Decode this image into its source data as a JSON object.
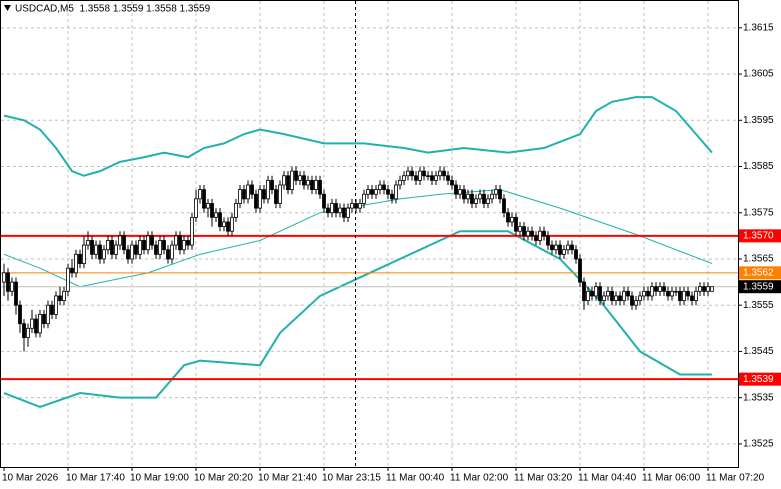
{
  "chart_data": {
    "type": "candlestick",
    "title": "USDCAD,M5  1.3558 1.3559 1.3558 1.3559",
    "open": [
      1.356,
      1.3562,
      1.3558,
      1.356,
      1.3555,
      1.3551,
      1.3548,
      1.355,
      1.3552,
      1.3549,
      1.3553,
      1.3551,
      1.3555,
      1.3553,
      1.3557,
      1.3556,
      1.3558,
      1.3563,
      1.3562,
      1.3566,
      1.3564,
      1.3568,
      1.3569,
      1.3566,
      1.3568,
      1.3565,
      1.3567,
      1.3569,
      1.3566,
      1.3568,
      1.357,
      1.3567,
      1.3565,
      1.3568,
      1.3566,
      1.3569,
      1.3567,
      1.357,
      1.3568,
      1.3566,
      1.3569,
      1.3567,
      1.3565,
      1.3568,
      1.357,
      1.3567,
      1.3569,
      1.3568,
      1.3574,
      1.3578,
      1.358,
      1.3576,
      1.3577,
      1.3574,
      1.3575,
      1.3572,
      1.3573,
      1.3571,
      1.3574,
      1.3577,
      1.358,
      1.3578,
      1.3581,
      1.3579,
      1.3576,
      1.358,
      1.3578,
      1.3582,
      1.358,
      1.3577,
      1.3581,
      1.3583,
      1.358,
      1.3584,
      1.3582,
      1.3583,
      1.3581,
      1.3582,
      1.358,
      1.3582,
      1.3579,
      1.3576,
      1.3575,
      1.3577,
      1.3575,
      1.3576,
      1.3574,
      1.3576,
      1.3577,
      1.3576,
      1.3577,
      1.3579,
      1.358,
      1.3579,
      1.358,
      1.3581,
      1.358,
      1.3579,
      1.3578,
      1.3581,
      1.3582,
      1.3583,
      1.3584,
      1.3583,
      1.3582,
      1.3584,
      1.3583,
      1.3583,
      1.3582,
      1.3583,
      1.3584,
      1.3583,
      1.3582,
      1.3581,
      1.3579,
      1.358,
      1.3578,
      1.3579,
      1.3577,
      1.3578,
      1.3579,
      1.3577,
      1.3578,
      1.3579,
      1.358,
      1.3578,
      1.3575,
      1.3573,
      1.3574,
      1.3571,
      1.3572,
      1.357,
      1.3571,
      1.357,
      1.3569,
      1.3571,
      1.357,
      1.3568,
      1.3567,
      1.3568,
      1.3566,
      1.3567,
      1.3568,
      1.3567,
      1.3565,
      1.356,
      1.3556,
      1.3558,
      1.3557,
      1.3559,
      1.3556,
      1.3557,
      1.3558,
      1.3556,
      1.3557,
      1.3556,
      1.3558,
      1.3557,
      1.3555,
      1.3556,
      1.3557,
      1.3558,
      1.3557,
      1.3559,
      1.3558,
      1.3559,
      1.3558,
      1.3557,
      1.3558,
      1.3558,
      1.3556,
      1.3558,
      1.3557,
      1.3556,
      1.3558,
      1.3559,
      1.3558,
      1.3558
    ],
    "high": [
      1.3564,
      1.3563,
      1.3561,
      1.3561,
      1.3556,
      1.3552,
      1.3551,
      1.3554,
      1.3553,
      1.3554,
      1.3554,
      1.3556,
      1.3556,
      1.3558,
      1.3559,
      1.3559,
      1.3564,
      1.3565,
      1.3567,
      1.3567,
      1.357,
      1.3571,
      1.357,
      1.3569,
      1.3569,
      1.3568,
      1.357,
      1.357,
      1.3569,
      1.3571,
      1.3571,
      1.3568,
      1.3569,
      1.3569,
      1.357,
      1.357,
      1.3571,
      1.3571,
      1.3569,
      1.357,
      1.357,
      1.3568,
      1.3569,
      1.3571,
      1.3571,
      1.357,
      1.357,
      1.3575,
      1.358,
      1.3581,
      1.3581,
      1.3578,
      1.3578,
      1.3576,
      1.3576,
      1.3574,
      1.3574,
      1.3575,
      1.3578,
      1.3581,
      1.3581,
      1.3582,
      1.3582,
      1.358,
      1.3581,
      1.3581,
      1.3583,
      1.3583,
      1.3581,
      1.3582,
      1.3584,
      1.3584,
      1.3585,
      1.3585,
      1.3584,
      1.3584,
      1.3583,
      1.3583,
      1.3583,
      1.3583,
      1.358,
      1.3577,
      1.3578,
      1.3578,
      1.3577,
      1.3577,
      1.3577,
      1.3578,
      1.3578,
      1.3578,
      1.358,
      1.3581,
      1.3581,
      1.3581,
      1.3582,
      1.3582,
      1.3581,
      1.358,
      1.3582,
      1.3583,
      1.3584,
      1.3585,
      1.3585,
      1.3584,
      1.3585,
      1.3585,
      1.3584,
      1.3584,
      1.3584,
      1.3585,
      1.3585,
      1.3584,
      1.3583,
      1.3582,
      1.3581,
      1.3581,
      1.358,
      1.358,
      1.3579,
      1.358,
      1.358,
      1.3579,
      1.358,
      1.3581,
      1.3581,
      1.3579,
      1.3576,
      1.3575,
      1.3575,
      1.3573,
      1.3573,
      1.3572,
      1.3572,
      1.3571,
      1.3572,
      1.3572,
      1.3571,
      1.3569,
      1.3569,
      1.3569,
      1.3568,
      1.3569,
      1.3569,
      1.3568,
      1.3566,
      1.3561,
      1.3559,
      1.3559,
      1.356,
      1.356,
      1.3558,
      1.3559,
      1.3559,
      1.3558,
      1.3558,
      1.3559,
      1.3559,
      1.3558,
      1.3557,
      1.3558,
      1.3559,
      1.3559,
      1.356,
      1.356,
      1.356,
      1.356,
      1.3559,
      1.3559,
      1.3559,
      1.3559,
      1.3559,
      1.3559,
      1.3558,
      1.3559,
      1.356,
      1.356,
      1.356,
      1.3559
    ],
    "low": [
      1.3557,
      1.3556,
      1.3557,
      1.3553,
      1.3549,
      1.3545,
      1.3546,
      1.3549,
      1.3548,
      1.3548,
      1.355,
      1.355,
      1.3552,
      1.3552,
      1.3555,
      1.3555,
      1.3557,
      1.3561,
      1.3561,
      1.3563,
      1.3563,
      1.3567,
      1.3565,
      1.3565,
      1.3564,
      1.3564,
      1.3566,
      1.3565,
      1.3565,
      1.3567,
      1.3566,
      1.3564,
      1.3564,
      1.3565,
      1.3565,
      1.3566,
      1.3566,
      1.3567,
      1.3565,
      1.3565,
      1.3566,
      1.3564,
      1.3564,
      1.3567,
      1.3566,
      1.3566,
      1.3567,
      1.3567,
      1.3573,
      1.3577,
      1.3575,
      1.3574,
      1.3572,
      1.3573,
      1.3571,
      1.3571,
      1.357,
      1.357,
      1.3573,
      1.3576,
      1.3577,
      1.3577,
      1.3578,
      1.3575,
      1.3575,
      1.3577,
      1.3577,
      1.3579,
      1.3576,
      1.3576,
      1.358,
      1.3579,
      1.3579,
      1.3581,
      1.3581,
      1.358,
      1.358,
      1.3579,
      1.3579,
      1.3578,
      1.3575,
      1.3574,
      1.3574,
      1.3574,
      1.3574,
      1.3573,
      1.3573,
      1.3575,
      1.3575,
      1.3575,
      1.3576,
      1.3578,
      1.3578,
      1.3578,
      1.3579,
      1.3579,
      1.3578,
      1.3577,
      1.3577,
      1.358,
      1.3581,
      1.3582,
      1.3582,
      1.3581,
      1.3581,
      1.3582,
      1.3582,
      1.3581,
      1.3581,
      1.3582,
      1.3582,
      1.3581,
      1.358,
      1.3578,
      1.3578,
      1.3577,
      1.3577,
      1.3576,
      1.3576,
      1.3577,
      1.3576,
      1.3576,
      1.3577,
      1.3578,
      1.3577,
      1.3574,
      1.3572,
      1.3572,
      1.357,
      1.357,
      1.3569,
      1.3569,
      1.3569,
      1.3568,
      1.3568,
      1.3569,
      1.3567,
      1.3566,
      1.3566,
      1.3565,
      1.3565,
      1.3566,
      1.3566,
      1.3564,
      1.3559,
      1.3554,
      1.3555,
      1.3556,
      1.3556,
      1.3555,
      1.3555,
      1.3556,
      1.3555,
      1.3555,
      1.3555,
      1.3555,
      1.3556,
      1.3554,
      1.3554,
      1.3555,
      1.3556,
      1.3556,
      1.3556,
      1.3557,
      1.3557,
      1.3557,
      1.3556,
      1.3556,
      1.3557,
      1.3555,
      1.3555,
      1.3556,
      1.3555,
      1.3555,
      1.3557,
      1.3557,
      1.3557,
      1.3558
    ],
    "close": [
      1.3562,
      1.3558,
      1.356,
      1.3555,
      1.3551,
      1.3548,
      1.355,
      1.3552,
      1.3549,
      1.3553,
      1.3551,
      1.3555,
      1.3553,
      1.3557,
      1.3556,
      1.3558,
      1.3563,
      1.3562,
      1.3566,
      1.3564,
      1.3568,
      1.3569,
      1.3566,
      1.3568,
      1.3565,
      1.3567,
      1.3569,
      1.3566,
      1.3568,
      1.357,
      1.3567,
      1.3565,
      1.3568,
      1.3566,
      1.3569,
      1.3567,
      1.357,
      1.3568,
      1.3566,
      1.3569,
      1.3567,
      1.3565,
      1.3568,
      1.357,
      1.3567,
      1.3569,
      1.3568,
      1.3574,
      1.3578,
      1.358,
      1.3576,
      1.3577,
      1.3574,
      1.3575,
      1.3572,
      1.3573,
      1.3571,
      1.3574,
      1.3577,
      1.358,
      1.3578,
      1.3581,
      1.3579,
      1.3576,
      1.358,
      1.3578,
      1.3582,
      1.358,
      1.3577,
      1.3581,
      1.3583,
      1.358,
      1.3584,
      1.3582,
      1.3583,
      1.3581,
      1.3582,
      1.358,
      1.3582,
      1.3579,
      1.3576,
      1.3575,
      1.3577,
      1.3575,
      1.3576,
      1.3574,
      1.3576,
      1.3577,
      1.3576,
      1.3577,
      1.3579,
      1.358,
      1.3579,
      1.358,
      1.3581,
      1.358,
      1.3579,
      1.3578,
      1.3581,
      1.3582,
      1.3583,
      1.3584,
      1.3583,
      1.3582,
      1.3584,
      1.3583,
      1.3583,
      1.3582,
      1.3583,
      1.3584,
      1.3583,
      1.3582,
      1.3581,
      1.3579,
      1.358,
      1.3578,
      1.3579,
      1.3577,
      1.3578,
      1.3579,
      1.3577,
      1.3578,
      1.3579,
      1.358,
      1.3578,
      1.3575,
      1.3573,
      1.3574,
      1.3571,
      1.3572,
      1.357,
      1.3571,
      1.357,
      1.3569,
      1.3571,
      1.357,
      1.3568,
      1.3567,
      1.3568,
      1.3566,
      1.3567,
      1.3568,
      1.3567,
      1.3565,
      1.356,
      1.3556,
      1.3558,
      1.3557,
      1.3559,
      1.3556,
      1.3557,
      1.3558,
      1.3556,
      1.3557,
      1.3556,
      1.3558,
      1.3557,
      1.3555,
      1.3556,
      1.3557,
      1.3558,
      1.3557,
      1.3559,
      1.3558,
      1.3559,
      1.3558,
      1.3557,
      1.3558,
      1.3558,
      1.3556,
      1.3558,
      1.3557,
      1.3556,
      1.3558,
      1.3559,
      1.3558,
      1.3559,
      1.3559
    ],
    "candle_color": "#000000",
    "xlim": [
      -1,
      183.5
    ],
    "xticks": [
      {
        "value": 0,
        "label": "10 Mar 2026"
      },
      {
        "value": 16,
        "label": "10 Mar 17:40"
      },
      {
        "value": 32,
        "label": "10 Mar 19:00"
      },
      {
        "value": 48,
        "label": "10 Mar 20:20"
      },
      {
        "value": 64,
        "label": "10 Mar 21:40"
      },
      {
        "value": 80,
        "label": "10 Mar 23:15"
      },
      {
        "value": 96,
        "label": "11 Mar 00:40"
      },
      {
        "value": 112,
        "label": "11 Mar 02:00"
      },
      {
        "value": 128,
        "label": "11 Mar 03:20"
      },
      {
        "value": 144,
        "label": "11 Mar 04:40"
      },
      {
        "value": 160,
        "label": "11 Mar 06:00"
      },
      {
        "value": 176,
        "label": "11 Mar 07:20"
      }
    ],
    "ylim": [
      1.352,
      1.36208
    ],
    "yticks": [
      1.3525,
      1.3535,
      1.3545,
      1.3555,
      1.3565,
      1.3575,
      1.3585,
      1.3595,
      1.3605,
      1.3615
    ],
    "grid": true,
    "lines": [
      {
        "color": "#20b2aa",
        "width": 2,
        "x": [
          0,
          5,
          9,
          13,
          17,
          20,
          24,
          29,
          35,
          40,
          46,
          50,
          55,
          60,
          64,
          70,
          80,
          90,
          100,
          106,
          115,
          126,
          135,
          144,
          148,
          152,
          158,
          162,
          168,
          172,
          177
        ],
        "values": [
          1.3596,
          1.3595,
          1.3593,
          1.3589,
          1.3584,
          1.3583,
          1.3584,
          1.3586,
          1.3587,
          1.3588,
          1.3587,
          1.3589,
          1.359,
          1.3592,
          1.3593,
          1.3592,
          1.359,
          1.359,
          1.3589,
          1.3588,
          1.3589,
          1.3588,
          1.3589,
          1.3592,
          1.3597,
          1.3599,
          1.36,
          1.36,
          1.3597,
          1.3593,
          1.3588
        ]
      },
      {
        "color": "#20b2aa",
        "width": 1,
        "x": [
          0,
          9,
          19,
          36,
          49,
          64,
          79,
          99,
          109,
          124,
          139,
          159,
          177
        ],
        "values": [
          1.3566,
          1.3563,
          1.3559,
          1.3562,
          1.3566,
          1.3569,
          1.3575,
          1.3578,
          1.3579,
          1.358,
          1.3576,
          1.357,
          1.3564
        ]
      },
      {
        "color": "#20b2aa",
        "width": 2,
        "x": [
          0,
          9,
          19,
          29,
          38,
          45,
          49,
          64,
          69,
          79,
          89,
          99,
          114,
          126,
          139,
          149,
          159,
          169,
          177
        ],
        "values": [
          1.3536,
          1.3533,
          1.3536,
          1.3535,
          1.3535,
          1.3542,
          1.3543,
          1.3542,
          1.3549,
          1.3557,
          1.3561,
          1.3565,
          1.3571,
          1.3571,
          1.3565,
          1.3556,
          1.3545,
          1.354,
          1.354
        ]
      }
    ],
    "levels": [
      {
        "value": 1.357,
        "label": "1.3570",
        "color": "#ff0000",
        "box": "#ff0000",
        "width": 2
      },
      {
        "value": 1.3562,
        "label": "1.3562",
        "color": "#ff8000",
        "box": "#ff8000",
        "width": 1
      },
      {
        "value": 1.3559,
        "label": "1.3559",
        "color": "#c0c0c0",
        "box": "#000000",
        "width": 1
      },
      {
        "value": 1.3539,
        "label": "1.3539",
        "color": "#ff0000",
        "box": "#ff0000",
        "width": 2
      }
    ]
  }
}
